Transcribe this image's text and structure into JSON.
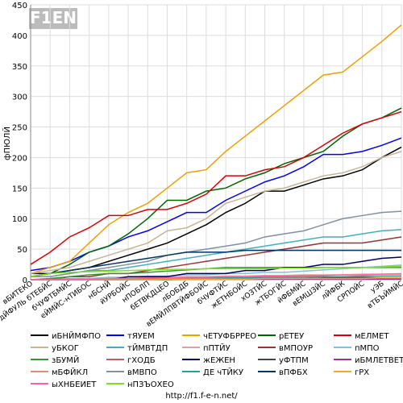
{
  "chart_data": {
    "type": "line",
    "logo": "F1EN",
    "y_label": "фПЮЛЙ",
    "footer": "http://f1.f-e-n.net/",
    "ylim": [
      0,
      450
    ],
    "yticks": [
      0,
      50,
      100,
      150,
      200,
      250,
      300,
      350,
      400,
      450
    ],
    "grid": true,
    "categories": [
      "вБИТЕКО",
      "дЙФУЛЬ бТЕБЙС",
      "бЧУФТБМЙС",
      "еЙМЙС-нТИБОС",
      "нБСНЙ",
      "йУРБОЙС",
      "нПОБЛП",
      "бЕТВКДЦЕО",
      "лБОБДБ",
      "вЕМЙЛПВТЙФБОЙС",
      "бЧУФТЙС",
      "жЕТНБОЙС",
      "хОЗТЙС",
      "жТБОГЙС",
      "йФБМЙС",
      "вЕМШЗЙС",
      "лЙФБК",
      "СРПОЙС",
      "уЭБ",
      "вТБЪЙМЙС"
    ],
    "series": [
      {
        "name": "иБНЙМФПО",
        "color": "#000000",
        "values": [
          10,
          10,
          15,
          20,
          30,
          40,
          50,
          60,
          75,
          90,
          110,
          125,
          145,
          145,
          155,
          165,
          170,
          180,
          200,
          217
        ]
      },
      {
        "name": "тЯУЕМ",
        "color": "#0000ff",
        "values": [
          15,
          20,
          30,
          45,
          55,
          70,
          80,
          95,
          110,
          110,
          130,
          145,
          160,
          170,
          185,
          205,
          205,
          210,
          220,
          232
        ]
      },
      {
        "name": "чЕТУФБРРЕО",
        "color": "#f0a000",
        "values": [
          10,
          20,
          30,
          60,
          90,
          110,
          125,
          150,
          175,
          180,
          210,
          235,
          260,
          285,
          310,
          335,
          340,
          365,
          390,
          417
        ]
      },
      {
        "name": "рЕТЕУ",
        "color": "#006400",
        "values": [
          5,
          10,
          25,
          45,
          55,
          75,
          100,
          130,
          130,
          145,
          150,
          165,
          175,
          190,
          200,
          210,
          235,
          255,
          265,
          281
        ]
      },
      {
        "name": "мЕЛМЕТ",
        "color": "#dd0000",
        "values": [
          25,
          45,
          70,
          85,
          105,
          105,
          115,
          115,
          125,
          140,
          170,
          170,
          180,
          185,
          200,
          220,
          240,
          255,
          265,
          275
        ]
      },
      {
        "name": "уБКОГ",
        "color": "#c8b496",
        "values": [
          10,
          15,
          20,
          30,
          40,
          50,
          60,
          80,
          85,
          100,
          125,
          135,
          145,
          150,
          160,
          170,
          175,
          185,
          200,
          210
        ]
      },
      {
        "name": "тЙМВТДП",
        "color": "#40b0c0",
        "values": [
          5,
          5,
          10,
          15,
          15,
          20,
          25,
          30,
          35,
          40,
          45,
          50,
          55,
          60,
          65,
          70,
          70,
          75,
          80,
          82
        ]
      },
      {
        "name": "пПТЙУ",
        "color": "#e0a0a0",
        "values": [
          0,
          0,
          0,
          2,
          2,
          3,
          4,
          4,
          5,
          5,
          6,
          6,
          7,
          7,
          8,
          8,
          8,
          9,
          9,
          10
        ]
      },
      {
        "name": "вМПОУР",
        "color": "#993333",
        "values": [
          0,
          0,
          5,
          5,
          10,
          10,
          15,
          20,
          25,
          30,
          35,
          40,
          45,
          50,
          55,
          60,
          60,
          60,
          65,
          70
        ]
      },
      {
        "name": "пМПО",
        "color": "#80c0e0",
        "values": [
          0,
          0,
          2,
          2,
          4,
          4,
          6,
          6,
          8,
          8,
          10,
          10,
          12,
          12,
          14,
          16,
          18,
          20,
          22,
          24
        ]
      },
      {
        "name": "зБУМЙ",
        "color": "#339933",
        "values": [
          0,
          2,
          5,
          8,
          10,
          10,
          12,
          14,
          16,
          18,
          20,
          20,
          20,
          20,
          20,
          20,
          20,
          20,
          20,
          20
        ]
      },
      {
        "name": "гХОДБ",
        "color": "#c06060",
        "values": [
          0,
          0,
          0,
          0,
          1,
          1,
          2,
          2,
          3,
          3,
          3,
          4,
          4,
          4,
          5,
          5,
          5,
          6,
          6,
          6
        ]
      },
      {
        "name": "жЕЖЕН",
        "color": "#000066",
        "values": [
          0,
          0,
          0,
          0,
          0,
          5,
          5,
          5,
          10,
          10,
          10,
          15,
          15,
          20,
          20,
          25,
          25,
          30,
          35,
          37
        ]
      },
      {
        "name": "уФТПМ",
        "color": "#444444",
        "values": [
          0,
          0,
          0,
          0,
          0,
          0,
          1,
          1,
          1,
          1,
          2,
          2,
          2,
          2,
          2,
          3,
          3,
          3,
          3,
          3
        ]
      },
      {
        "name": "иБМЛЕТВЕТЗ",
        "color": "#993399",
        "values": [
          0,
          0,
          0,
          0,
          0,
          0,
          0,
          0,
          1,
          1,
          1,
          1,
          1,
          1,
          1,
          1,
          1,
          1,
          1,
          1
        ]
      },
      {
        "name": "мБФЙКЛ",
        "color": "#e09070",
        "values": [
          0,
          0,
          1,
          1,
          1,
          2,
          2,
          2,
          3,
          3,
          3,
          4,
          4,
          4,
          5,
          5,
          5,
          5,
          6,
          6
        ]
      },
      {
        "name": "вМВПО",
        "color": "#8090a0",
        "values": [
          5,
          5,
          10,
          15,
          20,
          25,
          30,
          40,
          45,
          50,
          55,
          60,
          70,
          75,
          80,
          90,
          100,
          105,
          110,
          112
        ]
      },
      {
        "name": "ДЕ чТЙКУ",
        "color": "#20a0a0",
        "values": [
          0,
          0,
          0,
          1,
          1,
          1,
          2,
          2,
          2,
          3,
          3,
          3,
          4,
          4,
          4,
          5,
          5,
          5,
          6,
          6
        ]
      },
      {
        "name": "вПФБХ",
        "color": "#003366",
        "values": [
          5,
          10,
          15,
          20,
          25,
          30,
          35,
          40,
          45,
          45,
          45,
          48,
          48,
          48,
          48,
          48,
          48,
          48,
          48,
          48
        ]
      },
      {
        "name": "гРХ",
        "color": "#ffa030",
        "values": [
          0,
          0,
          0,
          0,
          0,
          0,
          0,
          1,
          1,
          1,
          1,
          1,
          2,
          2,
          2,
          2,
          2,
          2,
          3,
          3
        ]
      },
      {
        "name": "ыХНБЕИЕТ",
        "color": "#ff60a0",
        "values": [
          0,
          0,
          1,
          1,
          2,
          2,
          3,
          3,
          4,
          4,
          5,
          5,
          6,
          6,
          7,
          7,
          8,
          8,
          9,
          9
        ]
      },
      {
        "name": "нПЗЪОХЕО",
        "color": "#80e020",
        "values": [
          5,
          10,
          12,
          13,
          14,
          15,
          16,
          17,
          17,
          18,
          18,
          18,
          18,
          19,
          19,
          20,
          20,
          20,
          21,
          22
        ]
      }
    ]
  }
}
